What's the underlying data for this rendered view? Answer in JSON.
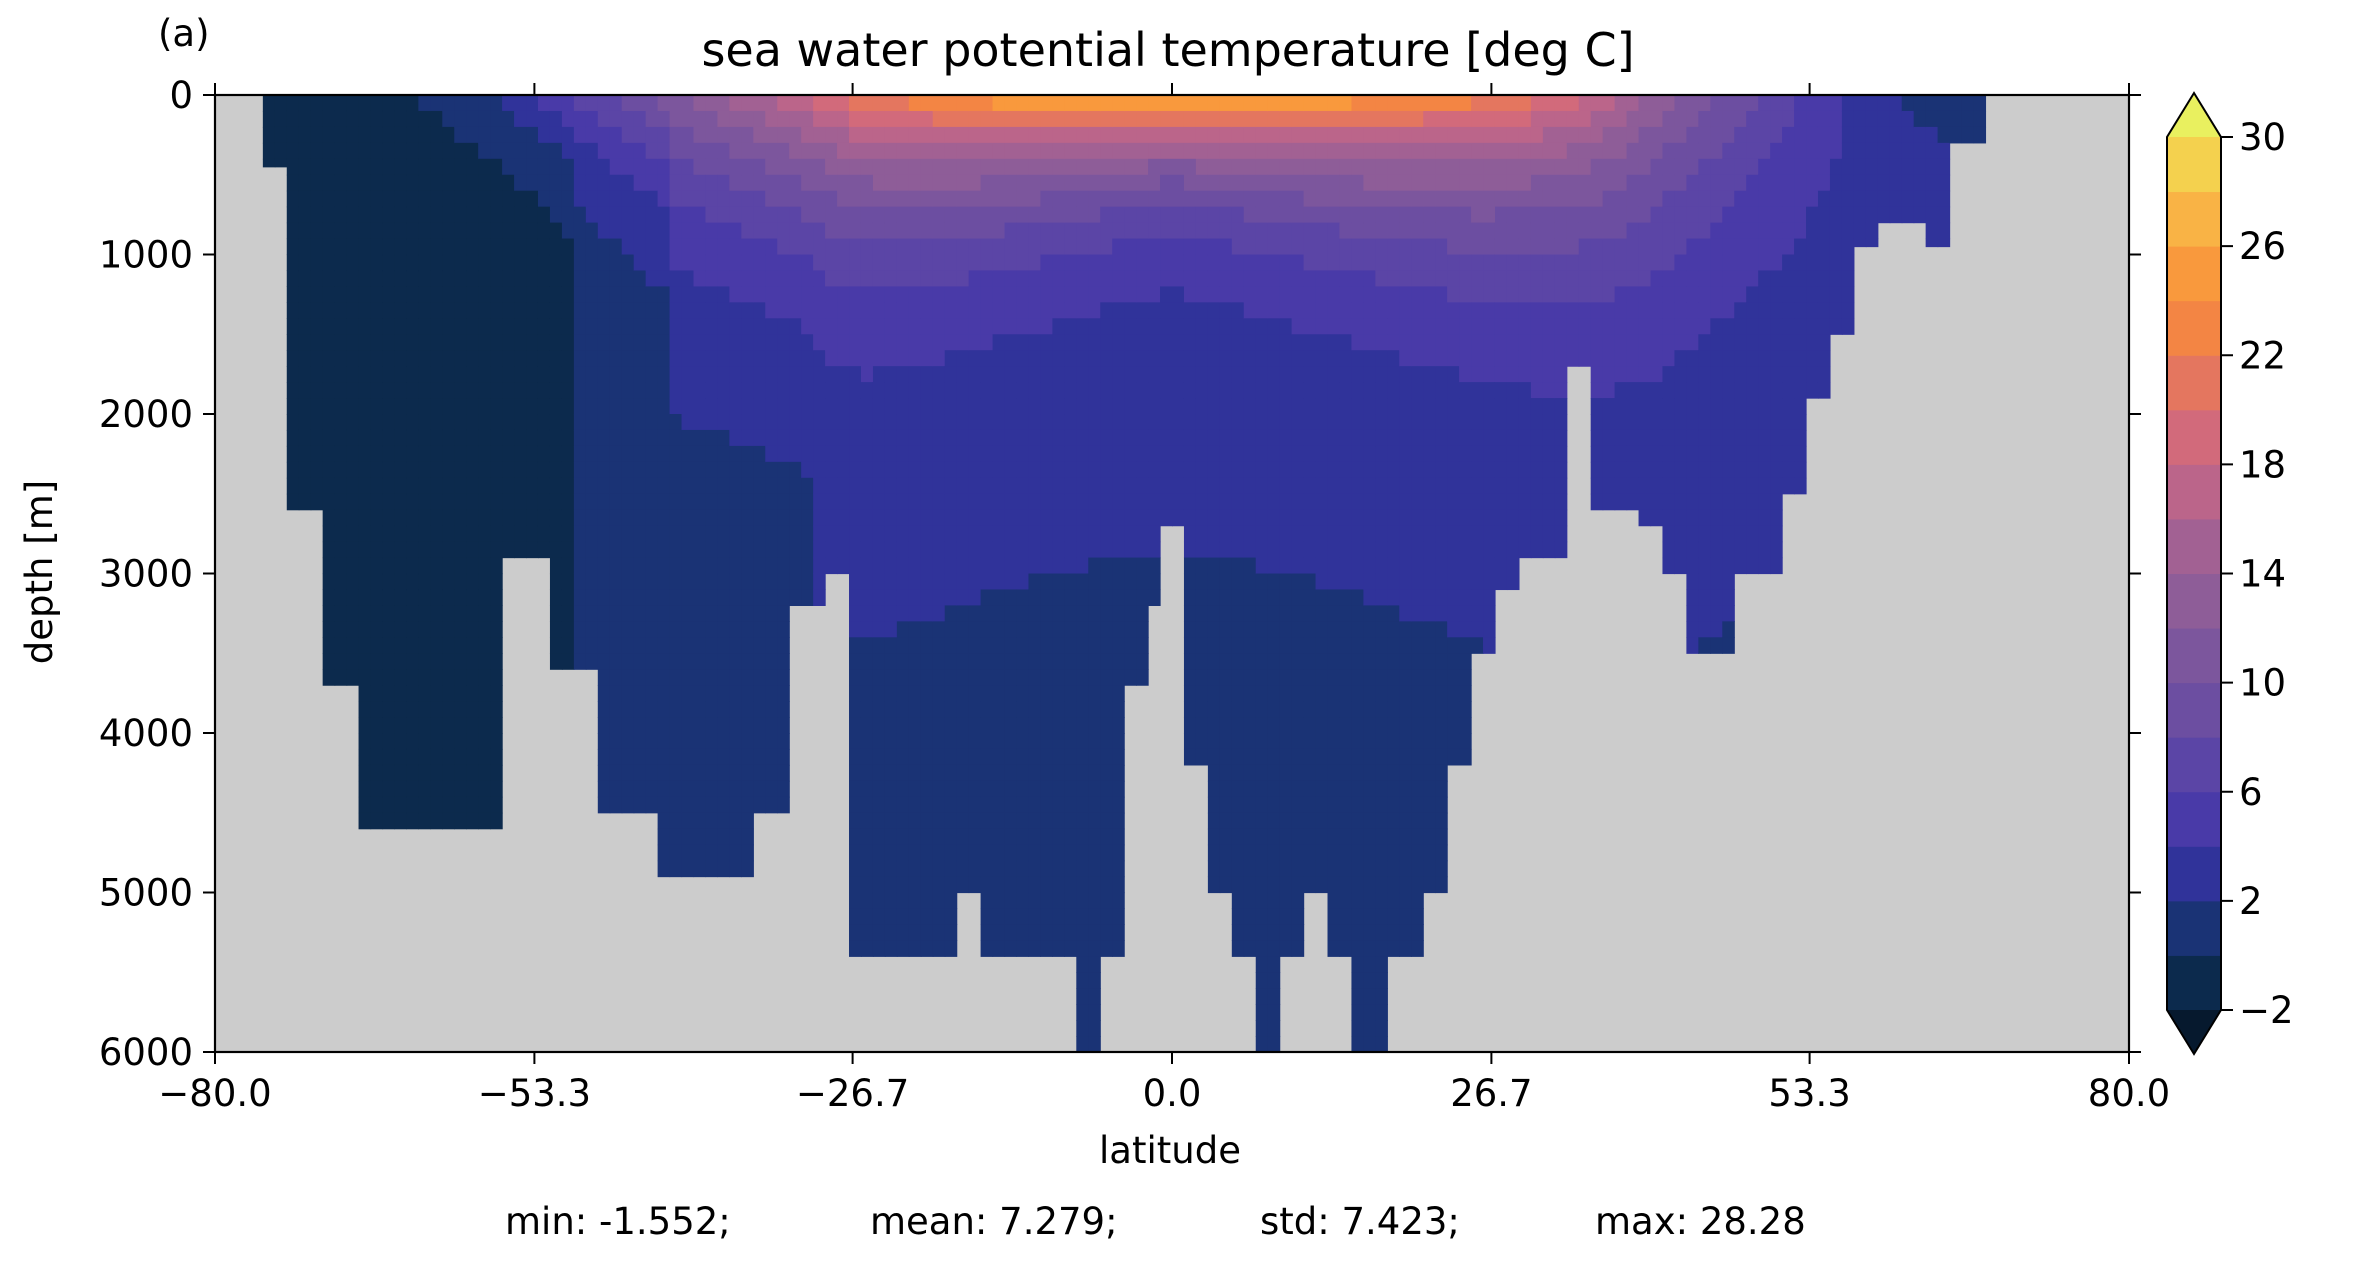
{
  "chart_data": {
    "type": "heatmap",
    "panel_label": "(a)",
    "title": "sea water potential temperature [deg C]",
    "xlabel": "latitude",
    "ylabel": "depth [m]",
    "xlim": [
      -80.0,
      80.0
    ],
    "ylim": [
      6000,
      0
    ],
    "y_inverted": true,
    "x_ticks": [
      -80.0,
      -53.3,
      -26.7,
      0.0,
      26.7,
      53.3,
      80.0
    ],
    "x_tick_labels": [
      "−80.0",
      "−53.3",
      "−26.7",
      "0.0",
      "26.7",
      "53.3",
      "80.0"
    ],
    "y_ticks": [
      0,
      1000,
      2000,
      3000,
      4000,
      5000,
      6000
    ],
    "y_tick_labels": [
      "0",
      "1000",
      "2000",
      "3000",
      "4000",
      "5000",
      "6000"
    ],
    "land_color": "#cccccc",
    "colorbar": {
      "levels": [
        -2,
        0,
        2,
        4,
        6,
        8,
        10,
        12,
        14,
        16,
        18,
        20,
        22,
        24,
        26,
        28,
        30
      ],
      "colors": [
        "#0c2a4d",
        "#1a3375",
        "#30339a",
        "#493aa8",
        "#5b45a6",
        "#6c4ea1",
        "#7c569d",
        "#8e5d98",
        "#a26193",
        "#bb658a",
        "#d26a7b",
        "#e4765f",
        "#f38544",
        "#f9993d",
        "#f9b345",
        "#f4d14e"
      ],
      "under_color": "#06192e",
      "over_color": "#e9f05f",
      "extend": "both",
      "tick_values": [
        -2,
        2,
        6,
        10,
        14,
        18,
        22,
        26,
        30
      ],
      "tick_labels": [
        "−2",
        "2",
        "6",
        "10",
        "14",
        "18",
        "22",
        "26",
        "30"
      ]
    },
    "ocean_profile": {
      "lat": [
        -76,
        -73,
        -70,
        -67,
        -63,
        -59,
        -55,
        -51,
        -47,
        -42,
        -38,
        -34,
        -31,
        -28,
        -26,
        -23,
        -20,
        -17,
        -15,
        -13,
        -11,
        -9,
        -7,
        -5,
        -3,
        -1,
        0,
        2,
        4,
        6,
        8,
        10,
        12,
        14,
        16,
        19,
        22,
        24,
        26,
        28,
        30,
        32,
        34,
        36,
        38,
        40,
        42,
        44,
        46,
        48,
        50,
        52,
        54,
        56,
        58,
        60,
        62,
        64,
        66
      ],
      "bottom_depth": [
        450,
        2600,
        3700,
        4600,
        4600,
        4600,
        2900,
        3600,
        4500,
        4900,
        4900,
        4500,
        3200,
        3000,
        5400,
        5400,
        5400,
        5000,
        5400,
        5400,
        5400,
        5400,
        6000,
        5400,
        3700,
        3200,
        2700,
        4200,
        5000,
        5400,
        6000,
        5400,
        5000,
        5400,
        6000,
        5400,
        5000,
        4200,
        3500,
        3100,
        2900,
        2900,
        1700,
        2600,
        2600,
        2700,
        3000,
        3500,
        3500,
        3000,
        3000,
        2500,
        1900,
        1500,
        950,
        800,
        800,
        950,
        300
      ]
    },
    "temperature_section": {
      "surface_temperature_by_lat": {
        "lat": [
          -76,
          -66,
          -56,
          -46,
          -40,
          -33,
          -26,
          -18,
          -10,
          0,
          10,
          18,
          26,
          34,
          40,
          46,
          54,
          60,
          65
        ],
        "temp": [
          -1.5,
          -1.0,
          2.5,
          9,
          13,
          17,
          22,
          25,
          27,
          28.3,
          27,
          25,
          23,
          19,
          14,
          10,
          5,
          2,
          0
        ]
      },
      "thermocline_depth_by_lat": {
        "lat": [
          -76,
          -60,
          -40,
          -26,
          -10,
          0,
          10,
          26,
          40,
          54,
          65
        ],
        "depth": [
          300,
          300,
          600,
          700,
          500,
          400,
          500,
          700,
          900,
          700,
          400
        ]
      },
      "deep_temperature_min": -1.0,
      "deep_temperature_max": 4.5
    },
    "stats": [
      {
        "name": "min",
        "text": "min: -1.552;"
      },
      {
        "name": "mean",
        "text": "mean: 7.279;"
      },
      {
        "name": "std",
        "text": "std: 7.423;"
      },
      {
        "name": "max",
        "text": "max: 28.28"
      }
    ]
  }
}
